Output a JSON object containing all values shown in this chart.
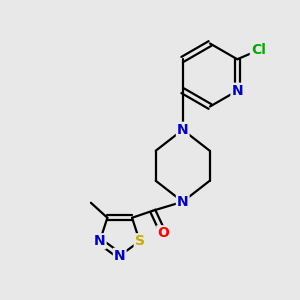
{
  "background_color": "#e8e8e8",
  "colors": {
    "C": "#000000",
    "N": "#0000cc",
    "O": "#ff0000",
    "S": "#ccaa00",
    "Cl": "#00aa00"
  },
  "bond_color": "#000000",
  "bond_width": 1.6,
  "font_size": 10
}
